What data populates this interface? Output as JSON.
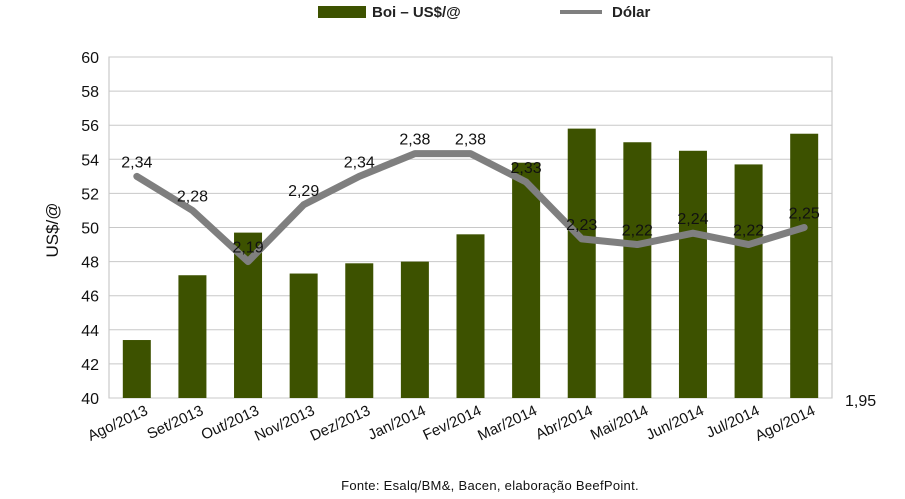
{
  "chart_data": {
    "type": "bar",
    "categories": [
      "Ago/2013",
      "Set/2013",
      "Out/2013",
      "Nov/2013",
      "Dez/2013",
      "Jan/2014",
      "Fev/2014",
      "Mar/2014",
      "Abr/2014",
      "Mai/2014",
      "Jun/2014",
      "Jul/2014",
      "Ago/2014"
    ],
    "series": [
      {
        "name": "Boi – US$/@",
        "type": "bar",
        "axis": "left",
        "color": "#3d5200",
        "values": [
          43.4,
          47.2,
          49.7,
          47.3,
          47.9,
          48.0,
          49.6,
          53.8,
          55.8,
          55.0,
          54.5,
          53.7,
          55.5
        ]
      },
      {
        "name": "Dólar",
        "type": "line",
        "axis": "right",
        "color": "#7f7f7f",
        "values": [
          2.34,
          2.28,
          2.19,
          2.29,
          2.34,
          2.38,
          2.38,
          2.33,
          2.23,
          2.22,
          2.24,
          2.22,
          2.25
        ],
        "data_labels": [
          "2,34",
          "2,28",
          "2,19",
          "2,29",
          "2,34",
          "2,38",
          "2,38",
          "2,33",
          "2,23",
          "2,22",
          "2,24",
          "2,22",
          "2,25"
        ]
      }
    ],
    "ylabel": "US$/@",
    "ylim": [
      40,
      60
    ],
    "yticks": [
      40,
      42,
      44,
      46,
      48,
      50,
      52,
      54,
      56,
      58,
      60
    ],
    "y2lim": [
      1.95,
      2.55
    ],
    "y2_tick_label": "1,95",
    "grid": "horizontal",
    "legend_position": "top-center",
    "source": "Fonte: Esalq/BM&, Bacen, elaboração BeefPoint."
  }
}
